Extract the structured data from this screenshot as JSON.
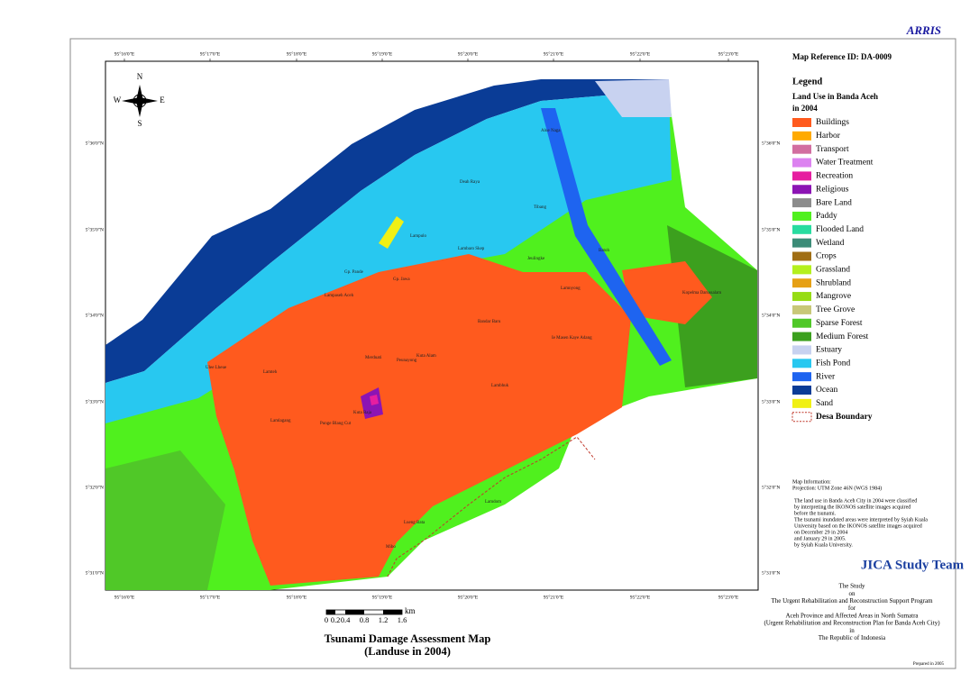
{
  "header": {
    "brand": "ARRIS",
    "map_reference": "Map Reference ID: DA-0009"
  },
  "map": {
    "title": [
      "Tsunami Damage Assessment Map",
      "(Landuse in 2004)"
    ],
    "longitude_labels": [
      "95°16'0\"E",
      "95°17'0\"E",
      "95°18'0\"E",
      "95°19'0\"E",
      "95°20'0\"E",
      "95°21'0\"E",
      "95°22'0\"E",
      "95°23'0\"E"
    ],
    "latitude_labels": [
      "5°36'0\"N",
      "5°35'0\"N",
      "5°34'0\"N",
      "5°33'0\"N",
      "5°32'0\"N",
      "5°31'0\"N"
    ],
    "compass": {
      "n": "N",
      "s": "S",
      "e": "E",
      "w": "W"
    },
    "places": [
      "Alue Naga",
      "Deah Raya",
      "Tibang",
      "Lampulo",
      "Lambaro Skep",
      "Gp. Pande",
      "Gp. Jawa",
      "Lampaseh Aceh",
      "Merduati",
      "Peunayong",
      "Kuta Alam",
      "Bandar Baru",
      "Lamnyong",
      "Kopelma Darussalam",
      "Ulee Lheue",
      "Lamteh",
      "Punge Blang Cut",
      "Lamlagang",
      "Kuta Raja",
      "Lueng Bata",
      "Batoh",
      "Lamdom",
      "Mibo",
      "Lambhuk",
      "Jeulingke",
      "Ie Masen Kaye Adang"
    ]
  },
  "scale_bar": {
    "ticks": [
      "0",
      "0.2",
      "0.4",
      "0.8",
      "1.2",
      "1.6"
    ],
    "unit": "km"
  },
  "legend": {
    "title": "Legend",
    "subtitle": [
      "Land Use in Banda Aceh",
      "in 2004"
    ],
    "items": [
      {
        "label": "Buildings",
        "color": "#ff5a1e"
      },
      {
        "label": "Harbor",
        "color": "#ffaa00"
      },
      {
        "label": "Transport",
        "color": "#d26ea0"
      },
      {
        "label": "Water Treatment",
        "color": "#dc82f0"
      },
      {
        "label": "Recreation",
        "color": "#e61ea0"
      },
      {
        "label": "Religious",
        "color": "#8c14b4"
      },
      {
        "label": "Bare Land",
        "color": "#8c8c8c"
      },
      {
        "label": "Paddy",
        "color": "#50f01e"
      },
      {
        "label": "Flooded Land",
        "color": "#28dca0"
      },
      {
        "label": "Wetland",
        "color": "#3c8c78"
      },
      {
        "label": "Crops",
        "color": "#a06e14"
      },
      {
        "label": "Grassland",
        "color": "#b4f01e"
      },
      {
        "label": "Shrubland",
        "color": "#e6a014"
      },
      {
        "label": "Mangrove",
        "color": "#96dc14"
      },
      {
        "label": "Tree Grove",
        "color": "#c8c878"
      },
      {
        "label": "Sparse Forest",
        "color": "#50c828"
      },
      {
        "label": "Medium Forest",
        "color": "#3ca01e"
      },
      {
        "label": "Estuary",
        "color": "#c8d2f0"
      },
      {
        "label": "Fish Pond",
        "color": "#28c8f0"
      },
      {
        "label": "River",
        "color": "#1e64f0"
      },
      {
        "label": "Ocean",
        "color": "#0a3c96"
      },
      {
        "label": "Sand",
        "color": "#f0f014"
      }
    ],
    "boundary": "Desa Boundary"
  },
  "info": {
    "map_info": [
      "Map Information:",
      "Projection: UTM Zone 46N (WGS 1984)"
    ],
    "notes": [
      "The land use in Banda Aceh City in 2004 were classified",
      "by interpreting the IKONOS satellite images acquired",
      "before the tsunami.",
      "The tsunami inundated areas were interpreted by Syiah Kuala",
      "University based on the IKONOS satellite images acquired",
      "on December 29 in 2004",
      "and January 29 in 2005.",
      "by Syiah Kuala University."
    ],
    "team": "JICA Study Team",
    "study": [
      "The Study",
      "on",
      "The Urgent Rehabilitation and Reconstruction Support Program",
      "for",
      "Aceh Province and Affected Areas in North Sumatra",
      "(Urgent Rehabilitation and Reconstruction Plan for Banda Aceh City)",
      "in",
      "The Republic of Indonesia"
    ],
    "prepared": "Prepared in 2005"
  }
}
